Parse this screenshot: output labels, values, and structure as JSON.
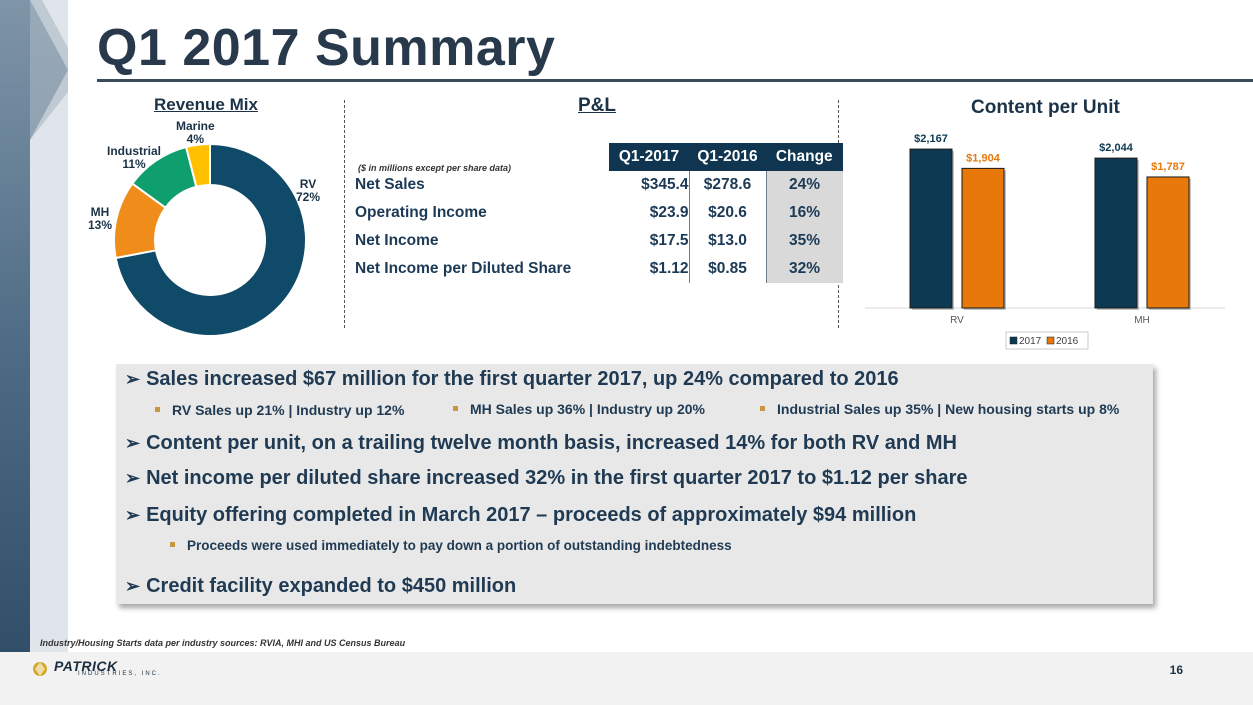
{
  "title": "Q1 2017 Summary",
  "revenue_mix": {
    "heading": "Revenue Mix",
    "labels": [
      {
        "name": "RV",
        "pct": "72%"
      },
      {
        "name": "MH",
        "pct": "13%"
      },
      {
        "name": "Industrial",
        "pct": "11%"
      },
      {
        "name": "Marine",
        "pct": "4%"
      }
    ]
  },
  "pl": {
    "heading": "P&L",
    "note": "($ in millions except per share data)",
    "columns": [
      "Q1-2017",
      "Q1-2016",
      "Change"
    ],
    "rows": [
      {
        "label": "Net Sales",
        "q1_2017": "$345.4",
        "q1_2016": "$278.6",
        "change": "24%"
      },
      {
        "label": "Operating Income",
        "q1_2017": "$23.9",
        "q1_2016": "$20.6",
        "change": "16%"
      },
      {
        "label": "Net Income",
        "q1_2017": "$17.5",
        "q1_2016": "$13.0",
        "change": "35%"
      },
      {
        "label": "Net Income per Diluted Share",
        "q1_2017": "$1.12",
        "q1_2016": "$0.85",
        "change": "32%"
      }
    ]
  },
  "content_per_unit": {
    "heading": "Content per Unit",
    "legend": [
      "2017",
      "2016"
    ]
  },
  "chart_data": [
    {
      "type": "pie",
      "title": "Revenue Mix",
      "categories": [
        "RV",
        "MH",
        "Industrial",
        "Marine"
      ],
      "values": [
        72,
        13,
        11,
        4
      ],
      "colors": [
        "#0f4a68",
        "#f08c1a",
        "#0f9e6e",
        "#ffc000"
      ]
    },
    {
      "type": "bar",
      "title": "Content per Unit",
      "categories": [
        "RV",
        "MH"
      ],
      "series": [
        {
          "name": "2017",
          "values": [
            2167,
            2044
          ],
          "labels": [
            "$2,167",
            "$2,044"
          ],
          "color": "#0d3a52"
        },
        {
          "name": "2016",
          "values": [
            1904,
            1787
          ],
          "labels": [
            "$1,904",
            "$1,787"
          ],
          "color": "#e87809"
        }
      ],
      "ylim": [
        0,
        2400
      ],
      "grid": false,
      "legend": "bottom"
    }
  ],
  "bullets": {
    "b1": "Sales increased $67 million for the first quarter 2017, up 24% compared to 2016",
    "sub1a": "RV Sales up 21% |  Industry up 12%",
    "sub1b": "MH Sales up 36% |  Industry up 20%",
    "sub1c": "Industrial Sales up 35% |  New housing starts up 8%",
    "b2": "Content per unit, on a trailing twelve month basis, increased 14% for both RV and MH",
    "b3": "Net income per diluted share increased 32% in the first quarter 2017 to $1.12 per share",
    "b4": "Equity offering completed in March 2017 – proceeds of approximately $94 million",
    "sub4": "Proceeds were used immediately to pay down a portion of outstanding indebtedness",
    "b5": "Credit facility expanded to $450 million"
  },
  "footnote": "Industry/Housing Starts data per industry sources: RVIA, MHI and US Census Bureau",
  "logo": {
    "name": "PATRICK",
    "sub": "INDUSTRIES, INC."
  },
  "page_number": "16",
  "colors": {
    "navy": "#0f3550",
    "orange": "#e87809",
    "gray_box": "#e8e8e8"
  }
}
